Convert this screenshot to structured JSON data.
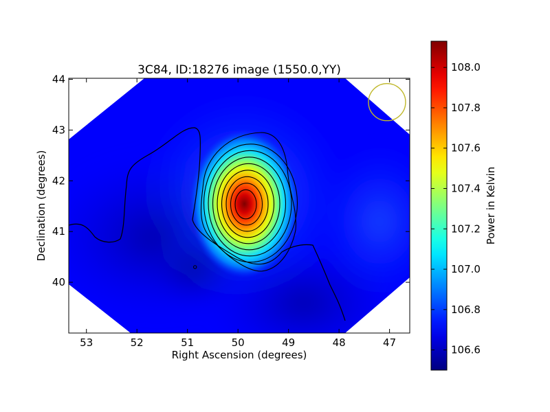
{
  "chart_data": {
    "type": "heatmap",
    "title": "3C84, ID:18276 image (1550.0,YY)",
    "xlabel": "Right Ascension (degrees)",
    "ylabel": "Declination (degrees)",
    "xlim": [
      53.35,
      46.6
    ],
    "ylim": [
      39.0,
      44.02
    ],
    "x_ticks": [
      53,
      52,
      51,
      50,
      49,
      48,
      47
    ],
    "x_tick_labels": [
      "53",
      "52",
      "51",
      "50",
      "49",
      "48",
      "47"
    ],
    "y_ticks": [
      40,
      41,
      42,
      43,
      44
    ],
    "y_tick_labels": [
      "40",
      "41",
      "42",
      "43",
      "44"
    ],
    "source": {
      "name": "3C84",
      "ra": 49.9,
      "dec": 41.6,
      "peak": 108.1
    },
    "background_level": 106.7,
    "local_minimum": {
      "ra": 50.85,
      "dec": 40.3,
      "value": 106.5
    },
    "contour_levels": [
      106.8,
      106.95,
      107.1,
      107.25,
      107.4,
      107.55,
      107.7,
      107.85,
      108.0
    ],
    "beam": {
      "ra": 47.05,
      "dec": 43.55,
      "color": "#c0b82b"
    },
    "colorbar": {
      "label": "Power in Kelvin",
      "min": 106.5,
      "max": 108.13,
      "ticks": [
        106.6,
        106.8,
        107.0,
        107.2,
        107.4,
        107.6,
        107.8,
        108.0
      ],
      "tick_labels": [
        "106.6",
        "106.8",
        "107.0",
        "107.2",
        "107.4",
        "107.6",
        "107.8",
        "108.0"
      ],
      "colormap": "jet"
    }
  }
}
